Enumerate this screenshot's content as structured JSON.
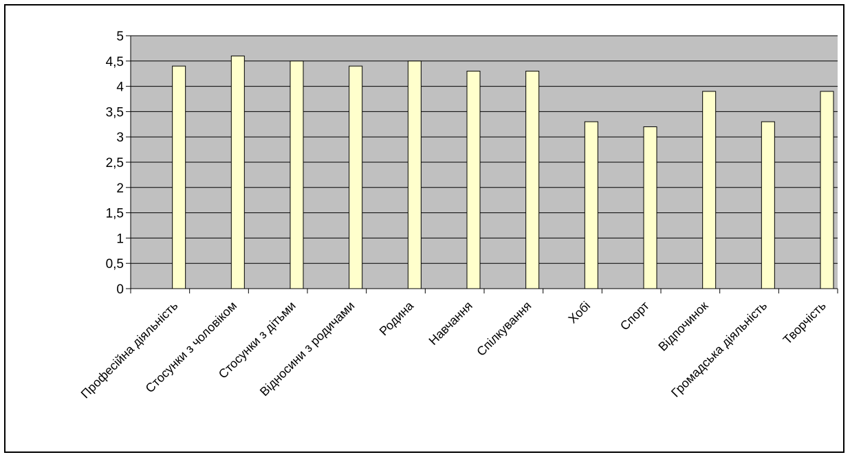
{
  "chart_data": {
    "type": "bar",
    "title": "",
    "xlabel": "",
    "ylabel": "",
    "ylim": [
      0,
      5
    ],
    "yticks": [
      "0",
      "0,5",
      "1",
      "1,5",
      "2",
      "2,5",
      "3",
      "3,5",
      "4",
      "4,5",
      "5"
    ],
    "grid": true,
    "categories": [
      "Професійна діяльність",
      "Стосунки з чоловіком",
      "Стосунки з дітьми",
      "Відносини з родичами",
      "Родина",
      "Навчання",
      "Спілкування",
      "Хобі",
      "Спорт",
      "Відпочинок",
      "Громадська діяльність",
      "Творчість"
    ],
    "values": [
      4.4,
      4.6,
      4.5,
      4.4,
      4.5,
      4.3,
      4.3,
      3.3,
      3.2,
      3.9,
      3.3,
      3.9
    ],
    "colors": {
      "plot_background": "#c0c0c0",
      "bar_fill": "#ffffcc",
      "bar_stroke": "#000000",
      "gridline": "#000000"
    }
  }
}
